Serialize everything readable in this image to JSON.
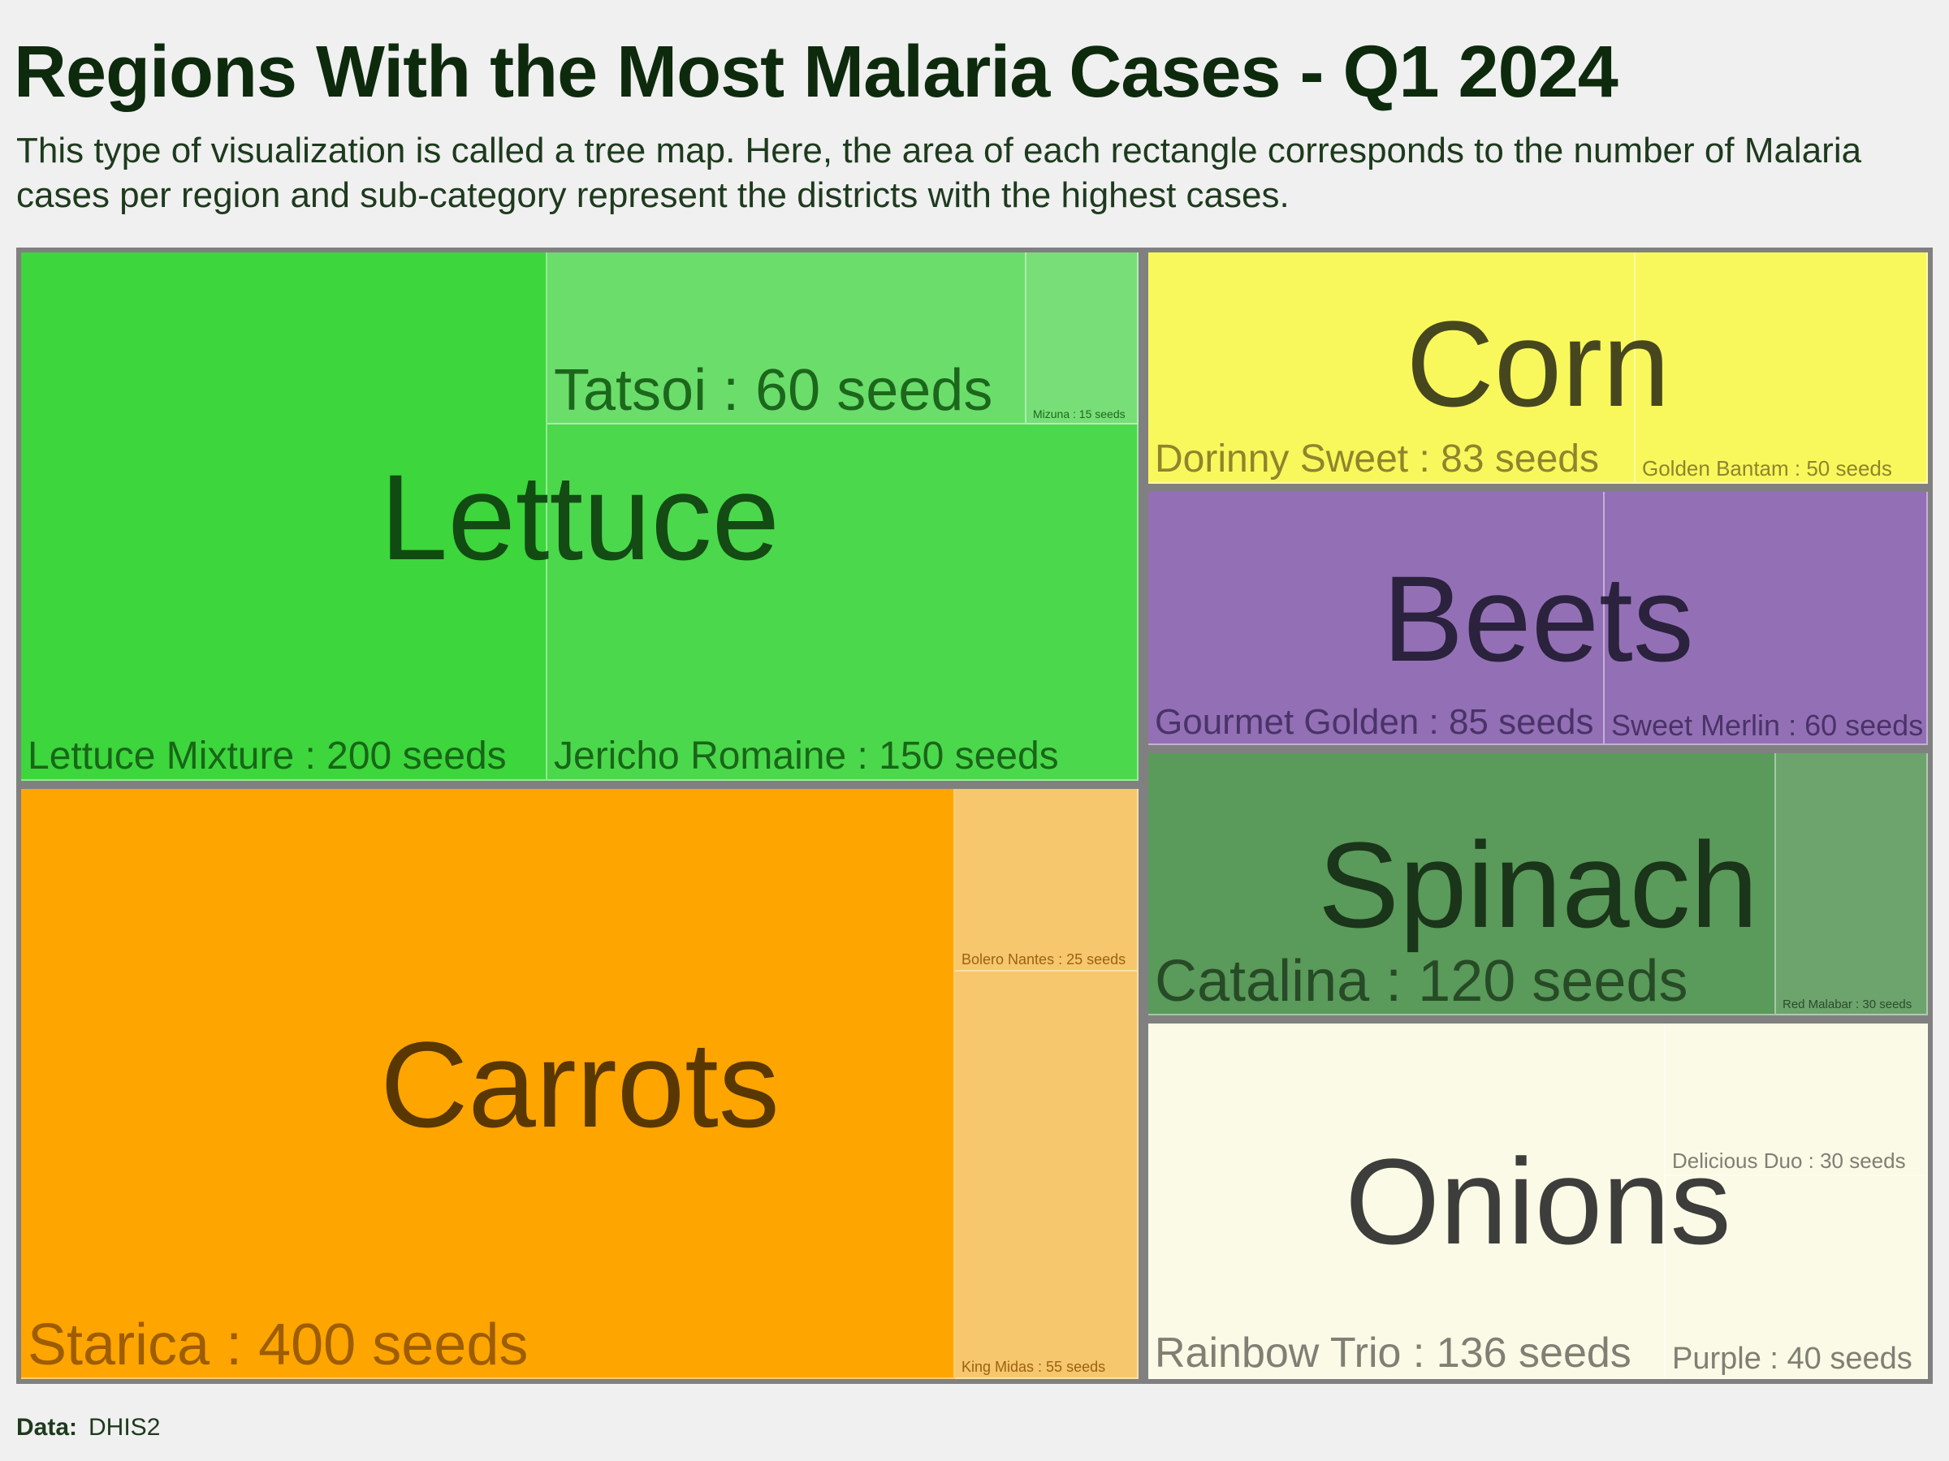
{
  "header": {
    "title": "Regions With the Most Malaria Cases - Q1 2024",
    "subtitle": "This type of visualization is called a tree map. Here, the area of each rectangle corresponds to the number of Malaria cases per region and sub-category represent the districts with the highest cases."
  },
  "footer": {
    "data_label": "Data:",
    "source": "DHIS2"
  },
  "chart_data": {
    "type": "treemap",
    "title": "Regions With the Most Malaria Cases - Q1 2024",
    "unit": "seeds",
    "groups": [
      {
        "name": "Lettuce",
        "color": "#3dd63d",
        "items": [
          {
            "name": "Lettuce Mixture",
            "value": 200,
            "label": "Lettuce Mixture : 200 seeds"
          },
          {
            "name": "Jericho Romaine",
            "value": 150,
            "label": "Jericho Romaine : 150 seeds"
          },
          {
            "name": "Tatsoi",
            "value": 60,
            "label": "Tatsoi : 60 seeds"
          },
          {
            "name": "Mizuna",
            "value": 15,
            "label": "Mizuna : 15 seeds"
          }
        ]
      },
      {
        "name": "Carrots",
        "color": "#ffa500",
        "items": [
          {
            "name": "Starica",
            "value": 400,
            "label": "Starica : 400 seeds"
          },
          {
            "name": "King Midas",
            "value": 55,
            "label": "King Midas : 55 seeds"
          },
          {
            "name": "Bolero Nantes",
            "value": 25,
            "label": "Bolero Nantes : 25 seeds"
          }
        ]
      },
      {
        "name": "Corn",
        "color": "#f8f85c",
        "items": [
          {
            "name": "Dorinny Sweet",
            "value": 83,
            "label": "Dorinny Sweet : 83 seeds"
          },
          {
            "name": "Golden Bantam",
            "value": 50,
            "label": "Golden Bantam : 50 seeds"
          }
        ]
      },
      {
        "name": "Beets",
        "color": "#9370b5",
        "items": [
          {
            "name": "Gourmet Golden",
            "value": 85,
            "label": "Gourmet Golden : 85 seeds"
          },
          {
            "name": "Sweet Merlin",
            "value": 60,
            "label": "Sweet Merlin : 60 seeds"
          }
        ]
      },
      {
        "name": "Spinach",
        "color": "#5a9a5a",
        "items": [
          {
            "name": "Catalina",
            "value": 120,
            "label": "Catalina : 120 seeds"
          },
          {
            "name": "Red Malabar",
            "value": 30,
            "label": "Red Malabar : 30 seeds"
          }
        ]
      },
      {
        "name": "Onions",
        "color": "#fafae6",
        "items": [
          {
            "name": "Rainbow Trio",
            "value": 136,
            "label": "Rainbow Trio : 136 seeds"
          },
          {
            "name": "Purple",
            "value": 40,
            "label": "Purple : 40 seeds"
          },
          {
            "name": "Delicious Duo",
            "value": 30,
            "label": "Delicious Duo : 30 seeds"
          }
        ]
      }
    ]
  }
}
